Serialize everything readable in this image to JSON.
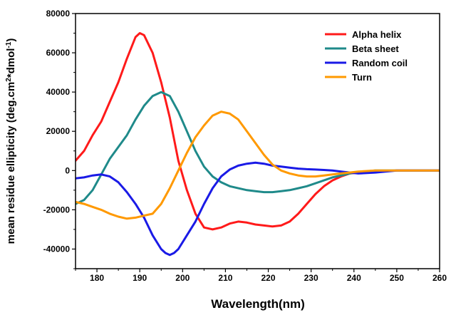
{
  "chart_data": {
    "type": "line",
    "title": "",
    "xlabel": "Wavelength(nm)",
    "ylabel": {
      "prefix": "mean residue ellipticity  (deg.cm",
      "sup1": "2",
      "middle": "*dmol",
      "sup2": "-1",
      "suffix": ")"
    },
    "xlim": [
      175,
      260
    ],
    "ylim": [
      -50000,
      80000
    ],
    "xticks": [
      180,
      190,
      200,
      210,
      220,
      230,
      240,
      250,
      260
    ],
    "yticks": [
      -40000,
      -20000,
      0,
      20000,
      40000,
      60000,
      80000
    ],
    "legend_position": "top-right",
    "series": [
      {
        "name": "Alpha helix",
        "color": "#ff1a1a",
        "x": [
          175,
          177,
          179,
          181,
          183,
          185,
          187,
          189,
          190,
          191,
          193,
          195,
          197,
          199,
          201,
          203,
          205,
          207,
          209,
          211,
          213,
          215,
          217,
          219,
          221,
          223,
          225,
          227,
          229,
          231,
          233,
          235,
          237,
          239,
          241,
          243,
          245,
          250,
          255,
          260
        ],
        "y": [
          5000,
          10000,
          18000,
          25000,
          35000,
          45000,
          57000,
          68000,
          70000,
          69000,
          60000,
          45000,
          27000,
          5000,
          -10000,
          -22000,
          -29000,
          -30000,
          -29000,
          -27000,
          -26000,
          -26500,
          -27500,
          -28000,
          -28500,
          -28000,
          -26000,
          -22000,
          -17000,
          -12000,
          -8000,
          -5000,
          -3000,
          -1500,
          -1000,
          -800,
          -500,
          0,
          0,
          0
        ]
      },
      {
        "name": "Beta sheet",
        "color": "#1f8a8a",
        "x": [
          175,
          177,
          179,
          181,
          183,
          185,
          187,
          189,
          191,
          193,
          195,
          197,
          199,
          201,
          203,
          205,
          207,
          209,
          211,
          213,
          215,
          217,
          219,
          221,
          223,
          225,
          227,
          229,
          231,
          233,
          235,
          237,
          239,
          241,
          245,
          250,
          255,
          260
        ],
        "y": [
          -17000,
          -15000,
          -10000,
          -2000,
          6000,
          12000,
          18000,
          26000,
          33000,
          38000,
          40000,
          38000,
          30000,
          20000,
          10000,
          2000,
          -3000,
          -6000,
          -8000,
          -9000,
          -10000,
          -10500,
          -11000,
          -11000,
          -10500,
          -10000,
          -9000,
          -8000,
          -6500,
          -5000,
          -3500,
          -2500,
          -1500,
          -800,
          0,
          0,
          0,
          0
        ]
      },
      {
        "name": "Random coil",
        "color": "#1a1ae6",
        "x": [
          175,
          177,
          179,
          181,
          183,
          185,
          187,
          189,
          191,
          193,
          195,
          196,
          197,
          198,
          199,
          201,
          203,
          205,
          207,
          209,
          211,
          213,
          215,
          217,
          219,
          221,
          223,
          225,
          227,
          229,
          231,
          233,
          235,
          237,
          239,
          241,
          245,
          250,
          255,
          260
        ],
        "y": [
          -4000,
          -3500,
          -2500,
          -2000,
          -3000,
          -6000,
          -11000,
          -17000,
          -24000,
          -33000,
          -40000,
          -42000,
          -43000,
          -42000,
          -40000,
          -33000,
          -26000,
          -17000,
          -9000,
          -3000,
          500,
          2500,
          3500,
          4000,
          3500,
          2500,
          2000,
          1500,
          1000,
          700,
          500,
          300,
          0,
          -500,
          -1000,
          -1500,
          -1000,
          0,
          0,
          0
        ]
      },
      {
        "name": "Turn",
        "color": "#ff9900",
        "x": [
          175,
          177,
          179,
          181,
          183,
          185,
          187,
          189,
          191,
          193,
          195,
          197,
          199,
          201,
          203,
          205,
          207,
          209,
          211,
          213,
          215,
          217,
          219,
          221,
          223,
          225,
          227,
          229,
          231,
          233,
          235,
          237,
          239,
          241,
          245,
          250,
          255,
          260
        ],
        "y": [
          -16000,
          -17000,
          -18500,
          -20000,
          -22000,
          -23500,
          -24500,
          -24000,
          -23000,
          -22000,
          -17000,
          -9000,
          0,
          9000,
          17000,
          23000,
          28000,
          30000,
          29000,
          26000,
          20000,
          14000,
          8000,
          3000,
          0,
          -1500,
          -2500,
          -3000,
          -3000,
          -2500,
          -2000,
          -1500,
          -1000,
          -500,
          0,
          0,
          0,
          0
        ]
      }
    ]
  }
}
